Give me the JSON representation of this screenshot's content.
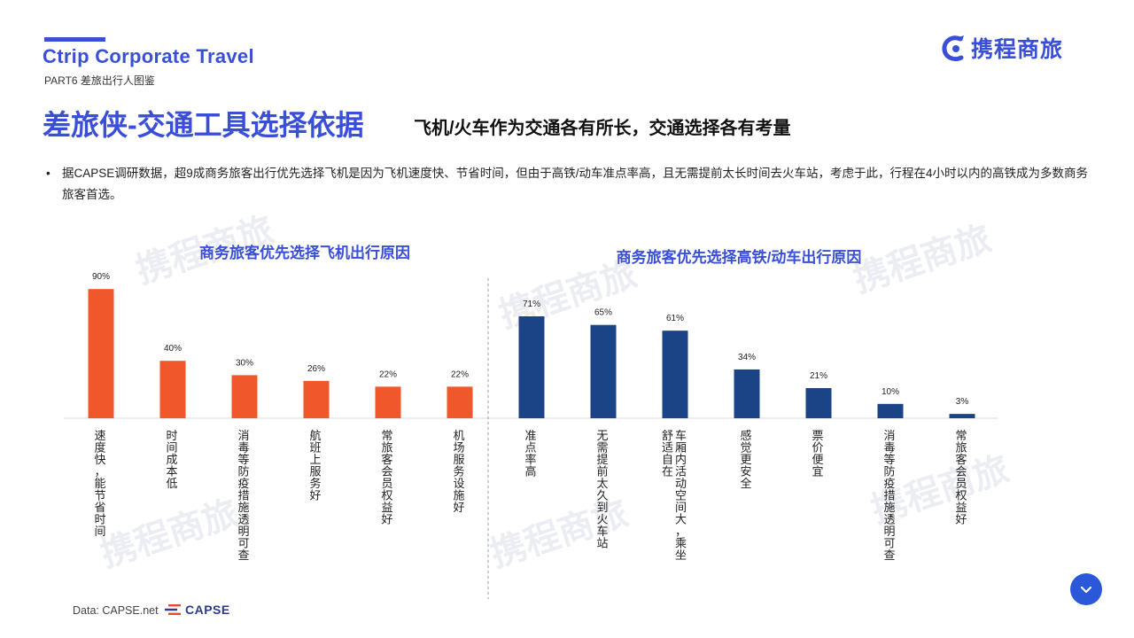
{
  "header": {
    "brand_title": "Ctrip Corporate Travel",
    "part_label": "PART6 差旅出行人图鉴",
    "logo_text": "携程商旅"
  },
  "title": {
    "main": "差旅侠-交通工具选择依据",
    "sub": "飞机/火车作为交通各有所长，交通选择各有考量"
  },
  "bullet": {
    "dot": "•",
    "text": "据CAPSE调研数据，超9成商务旅客出行优先选择飞机是因为飞机速度快、节省时间，但由于高铁/动车准点率高，且无需提前太长时间去火车站，考虑于此，行程在4小时以内的高铁成为多数商务旅客首选。"
  },
  "watermark_text": "携程商旅",
  "colors": {
    "accent": "#3a4fd7",
    "plane_bar": "#f0572a",
    "train_bar": "#1a4486"
  },
  "chart_data": [
    {
      "type": "bar",
      "title": "商务旅客优先选择飞机出行原因",
      "categories": [
        "速度快，能节省时间",
        "时间成本低",
        "消毒等防疫措施透明可查",
        "航班上服务好",
        "常旅客会员权益好",
        "机场服务设施好"
      ],
      "values": [
        90,
        40,
        30,
        26,
        22,
        22
      ],
      "value_labels": [
        "90%",
        "40%",
        "30%",
        "26%",
        "22%",
        "22%"
      ],
      "ylim": [
        0,
        100
      ],
      "color": "#f0572a"
    },
    {
      "type": "bar",
      "title": "商务旅客优先选择高铁/动车出行原因",
      "categories": [
        "准点率高",
        "无需提前太久到火车站",
        "车厢内活动空间大，乘坐舒适自在",
        "感觉更安全",
        "票价便宜",
        "消毒等防疫措施透明可查",
        "常旅客会员权益好"
      ],
      "values": [
        71,
        65,
        61,
        34,
        21,
        10,
        3
      ],
      "value_labels": [
        "71%",
        "65%",
        "61%",
        "34%",
        "21%",
        "10%",
        "3%"
      ],
      "ylim": [
        0,
        100
      ],
      "color": "#1a4486"
    }
  ],
  "footer": {
    "source": "Data: CAPSE.net",
    "capse_logo": "CAPSE"
  },
  "nav": {
    "icon": "chevron-down-icon"
  }
}
